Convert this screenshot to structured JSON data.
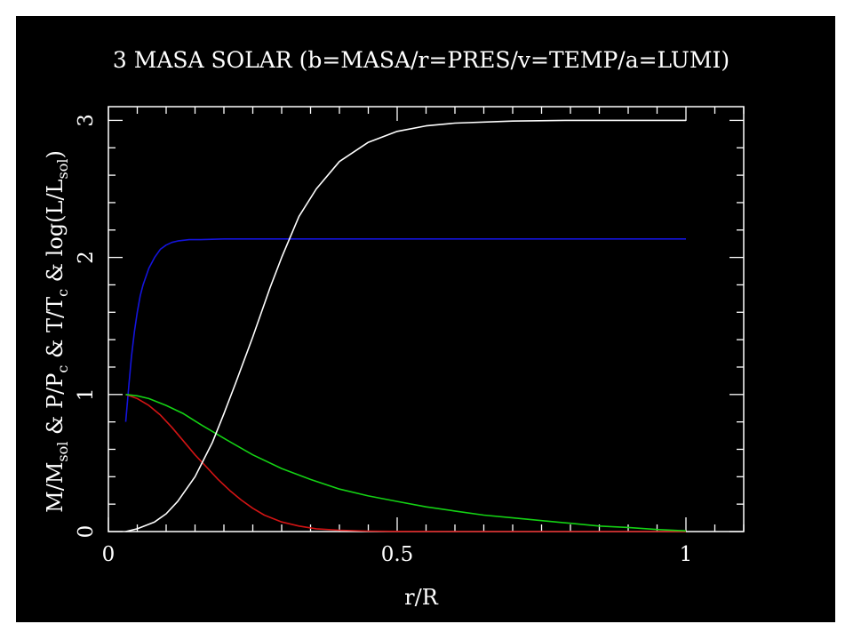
{
  "chart_data": {
    "type": "line",
    "title": "3 MASA SOLAR (b=MASA/r=PRES/v=TEMP/a=LUMI)",
    "xlabel": "r/R",
    "ylabel_parts": [
      "M/M",
      "sol",
      " & P/P",
      "c",
      " & T/T",
      "c",
      " & log(L/L",
      "sol",
      ")"
    ],
    "xlim": [
      0,
      1.1
    ],
    "ylim": [
      0,
      3.1
    ],
    "x_ticks": [
      {
        "value": 0,
        "label": "0"
      },
      {
        "value": 0.5,
        "label": "0.5"
      },
      {
        "value": 1,
        "label": "1"
      }
    ],
    "y_ticks": [
      {
        "value": 0,
        "label": "0"
      },
      {
        "value": 1,
        "label": "1"
      },
      {
        "value": 2,
        "label": "2"
      },
      {
        "value": 3,
        "label": "3"
      }
    ],
    "series": [
      {
        "color": "#1414dc",
        "x": [
          0.03,
          0.035,
          0.04,
          0.045,
          0.05,
          0.055,
          0.06,
          0.07,
          0.08,
          0.09,
          0.1,
          0.11,
          0.12,
          0.14,
          0.16,
          0.2,
          0.3,
          0.5,
          0.7,
          1.0
        ],
        "y": [
          0.8,
          1.05,
          1.28,
          1.46,
          1.6,
          1.72,
          1.8,
          1.92,
          2.0,
          2.06,
          2.09,
          2.11,
          2.12,
          2.13,
          2.13,
          2.135,
          2.135,
          2.135,
          2.135,
          2.135
        ]
      },
      {
        "color": "#d21414",
        "x": [
          0.03,
          0.05,
          0.07,
          0.09,
          0.11,
          0.13,
          0.15,
          0.17,
          0.19,
          0.21,
          0.23,
          0.25,
          0.27,
          0.3,
          0.33,
          0.36,
          0.4,
          0.45,
          0.5,
          0.6,
          0.8,
          1.0
        ],
        "y": [
          1.0,
          0.97,
          0.92,
          0.85,
          0.76,
          0.66,
          0.56,
          0.47,
          0.38,
          0.3,
          0.23,
          0.17,
          0.12,
          0.07,
          0.04,
          0.02,
          0.01,
          0.003,
          0.001,
          0,
          0,
          0
        ]
      },
      {
        "color": "#14d214",
        "x": [
          0.03,
          0.05,
          0.07,
          0.1,
          0.13,
          0.16,
          0.2,
          0.25,
          0.3,
          0.35,
          0.4,
          0.45,
          0.5,
          0.55,
          0.6,
          0.65,
          0.7,
          0.75,
          0.8,
          0.85,
          0.9,
          0.95,
          1.0
        ],
        "y": [
          1.0,
          0.99,
          0.97,
          0.92,
          0.86,
          0.78,
          0.68,
          0.56,
          0.46,
          0.38,
          0.31,
          0.26,
          0.22,
          0.18,
          0.15,
          0.12,
          0.1,
          0.08,
          0.06,
          0.04,
          0.03,
          0.015,
          0.005
        ]
      },
      {
        "color": "#ffffff",
        "x": [
          0.03,
          0.05,
          0.08,
          0.1,
          0.12,
          0.15,
          0.18,
          0.2,
          0.22,
          0.25,
          0.28,
          0.3,
          0.33,
          0.36,
          0.4,
          0.45,
          0.5,
          0.55,
          0.6,
          0.7,
          0.8,
          0.9,
          1.0
        ],
        "y": [
          0.0,
          0.02,
          0.07,
          0.13,
          0.22,
          0.4,
          0.65,
          0.86,
          1.08,
          1.42,
          1.78,
          2.0,
          2.3,
          2.5,
          2.7,
          2.84,
          2.92,
          2.96,
          2.98,
          2.995,
          3.0,
          3.0,
          3.0
        ]
      }
    ]
  }
}
